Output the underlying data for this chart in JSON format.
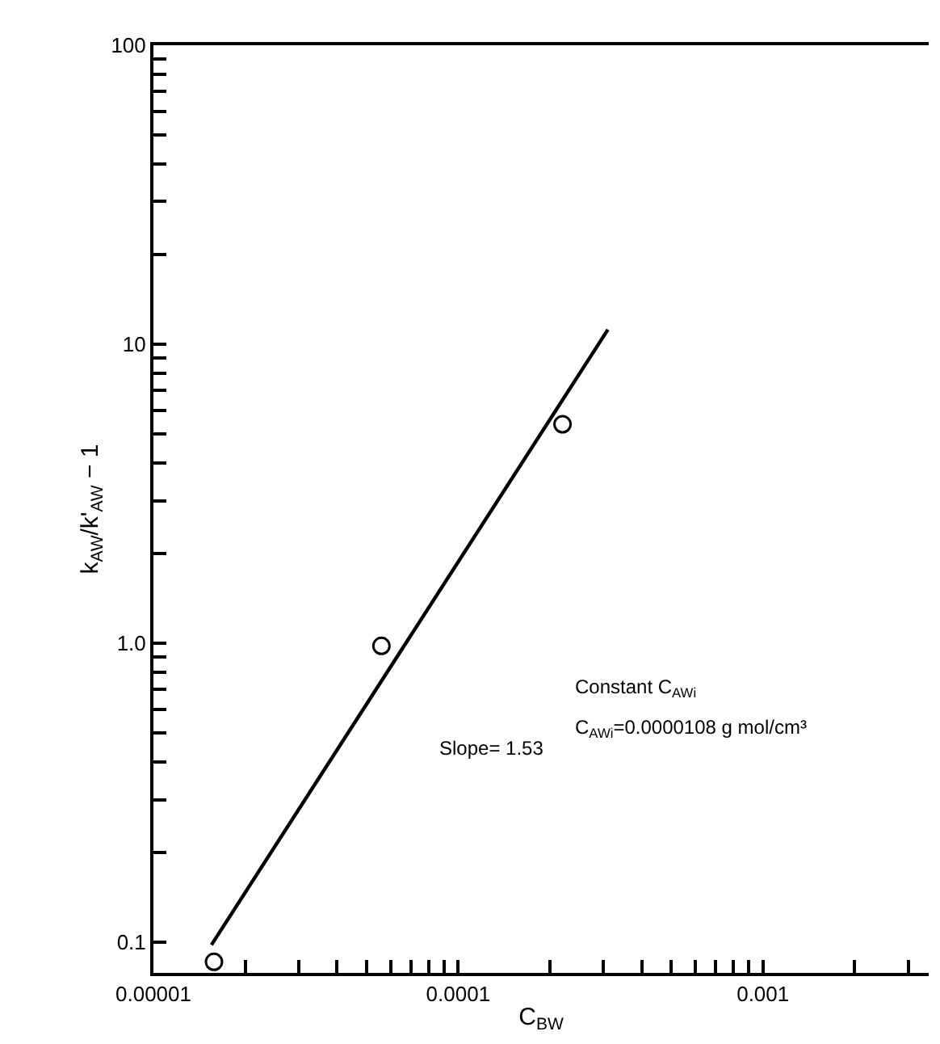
{
  "chart_data": {
    "type": "scatter",
    "xlabel": "C$_{BW}$",
    "ylabel": "k$_{AW}$/k'$_{AW}$ − 1",
    "log": "xy",
    "xlim": [
      1e-05,
      0.0035
    ],
    "ylim": [
      0.079,
      100
    ],
    "xticks": [
      {
        "value": 1e-05,
        "label": "0.00001"
      },
      {
        "value": 2e-05,
        "label": null
      },
      {
        "value": 3e-05,
        "label": null
      },
      {
        "value": 4e-05,
        "label": null
      },
      {
        "value": 5e-05,
        "label": null
      },
      {
        "value": 6e-05,
        "label": null
      },
      {
        "value": 7e-05,
        "label": null
      },
      {
        "value": 8e-05,
        "label": null
      },
      {
        "value": 9e-05,
        "label": null
      },
      {
        "value": 0.0001,
        "label": "0.0001"
      },
      {
        "value": 0.0002,
        "label": null
      },
      {
        "value": 0.0003,
        "label": null
      },
      {
        "value": 0.0004,
        "label": null
      },
      {
        "value": 0.0005,
        "label": null
      },
      {
        "value": 0.0006,
        "label": null
      },
      {
        "value": 0.0007,
        "label": null
      },
      {
        "value": 0.0008,
        "label": null
      },
      {
        "value": 0.0009,
        "label": null
      },
      {
        "value": 0.001,
        "label": "0.001"
      },
      {
        "value": 0.002,
        "label": null
      },
      {
        "value": 0.003,
        "label": null
      }
    ],
    "yticks": [
      {
        "value": 0.1,
        "label": "0.1"
      },
      {
        "value": 0.2,
        "label": null
      },
      {
        "value": 0.3,
        "label": null
      },
      {
        "value": 0.4,
        "label": null
      },
      {
        "value": 0.5,
        "label": null
      },
      {
        "value": 0.6,
        "label": null
      },
      {
        "value": 0.7,
        "label": null
      },
      {
        "value": 0.8,
        "label": null
      },
      {
        "value": 0.9,
        "label": null
      },
      {
        "value": 1,
        "label": "1.0"
      },
      {
        "value": 2,
        "label": null
      },
      {
        "value": 3,
        "label": null
      },
      {
        "value": 4,
        "label": null
      },
      {
        "value": 5,
        "label": null
      },
      {
        "value": 6,
        "label": null
      },
      {
        "value": 7,
        "label": null
      },
      {
        "value": 8,
        "label": null
      },
      {
        "value": 9,
        "label": null
      },
      10,
      {
        "value": 20,
        "label": null
      },
      {
        "value": 30,
        "label": null
      },
      {
        "value": 40,
        "label": null
      },
      {
        "value": 50,
        "label": null
      },
      {
        "value": 60,
        "label": null
      },
      {
        "value": 70,
        "label": null
      },
      {
        "value": 80,
        "label": null
      },
      {
        "value": 90,
        "label": null
      },
      100
    ],
    "series": [
      {
        "marker": "circle",
        "color": "#000000",
        "x": [
          1.58e-05,
          5.6e-05,
          0.00022
        ],
        "values": [
          0.086,
          0.98,
          5.4
        ]
      },
      {
        "type": "line",
        "marker": "none",
        "line_style": "solid",
        "color": "#000000",
        "x": [
          1.55e-05,
          0.00031
        ],
        "values": [
          0.098,
          11.2
        ]
      }
    ],
    "annotations": [
      "Slope= 1.53",
      "Constant C$_{AWi}$",
      "C$_{AWi}$=0.0000108 g mol/cm³"
    ]
  }
}
